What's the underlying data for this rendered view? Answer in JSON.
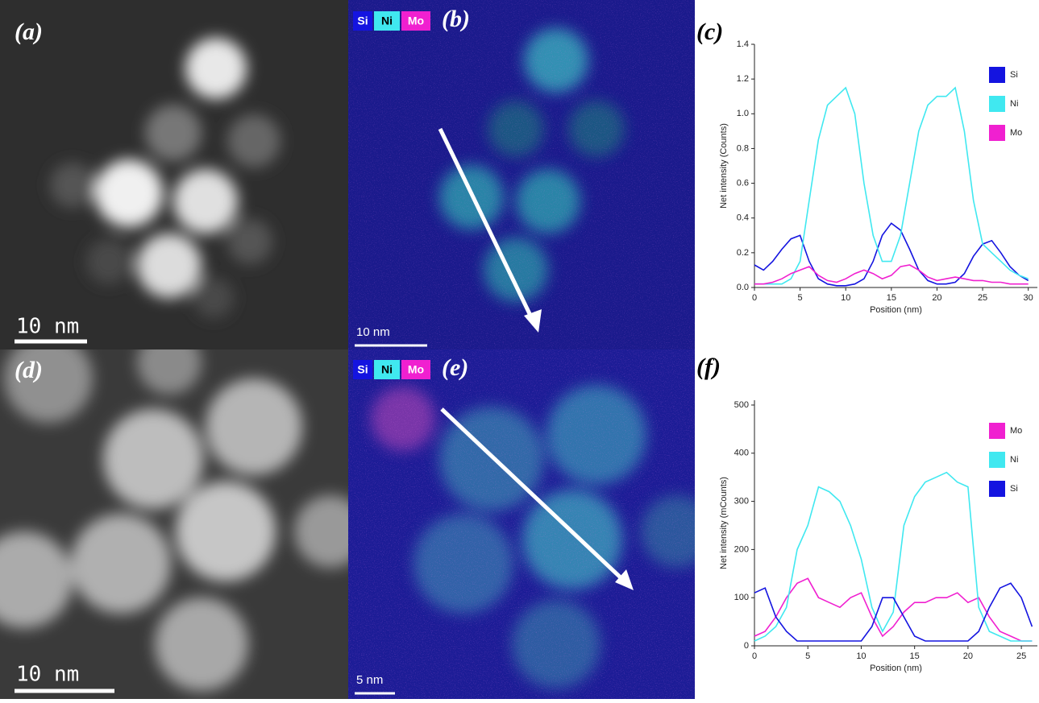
{
  "panels": [
    {
      "label": "(a)",
      "scale_bar": "10 nm"
    },
    {
      "label": "(b)",
      "scale_bar": "10 nm",
      "elements": [
        "Si",
        "Ni",
        "Mo"
      ]
    },
    {
      "label": "(d)",
      "scale_bar": "10 nm"
    },
    {
      "label": "(e)",
      "scale_bar": "5 nm",
      "elements": [
        "Si",
        "Ni",
        "Mo"
      ]
    }
  ],
  "chart_data": [
    {
      "type": "line",
      "title": "(c)",
      "x_label": "Position (nm)",
      "y_label": "Net intensity (Counts)",
      "x": [
        0,
        1,
        2,
        3,
        4,
        5,
        6,
        7,
        8,
        9,
        10,
        11,
        12,
        13,
        14,
        15,
        16,
        17,
        18,
        19,
        20,
        21,
        22,
        23,
        24,
        25,
        26,
        27,
        28,
        29,
        30
      ],
      "series": [
        {
          "name": "Si",
          "color": "#1414e0",
          "values": [
            0.13,
            0.1,
            0.15,
            0.22,
            0.28,
            0.3,
            0.15,
            0.05,
            0.02,
            0.01,
            0.01,
            0.02,
            0.05,
            0.15,
            0.3,
            0.37,
            0.33,
            0.22,
            0.1,
            0.04,
            0.02,
            0.02,
            0.03,
            0.08,
            0.18,
            0.25,
            0.27,
            0.2,
            0.12,
            0.07,
            0.04
          ]
        },
        {
          "name": "Ni",
          "color": "#40e8f0",
          "values": [
            0.02,
            0.02,
            0.02,
            0.02,
            0.05,
            0.15,
            0.5,
            0.85,
            1.05,
            1.1,
            1.15,
            1.0,
            0.6,
            0.3,
            0.15,
            0.15,
            0.3,
            0.6,
            0.9,
            1.05,
            1.1,
            1.1,
            1.15,
            0.9,
            0.5,
            0.25,
            0.2,
            0.15,
            0.1,
            0.07,
            0.05
          ]
        },
        {
          "name": "Mo",
          "color": "#f020d0",
          "values": [
            0.02,
            0.02,
            0.03,
            0.05,
            0.08,
            0.1,
            0.12,
            0.07,
            0.04,
            0.03,
            0.05,
            0.08,
            0.1,
            0.08,
            0.05,
            0.07,
            0.12,
            0.13,
            0.1,
            0.06,
            0.04,
            0.05,
            0.06,
            0.05,
            0.04,
            0.04,
            0.03,
            0.03,
            0.02,
            0.02,
            0.02
          ]
        }
      ],
      "xlim": [
        0,
        31
      ],
      "xticks": [
        0,
        5,
        10,
        15,
        20,
        25,
        30
      ],
      "ylim": [
        0,
        1.4
      ],
      "yticks": [
        {
          "value": 0,
          "label": "0.0"
        },
        0.2,
        0.4,
        0.6,
        0.8,
        {
          "value": 1,
          "label": "1.0"
        },
        1.2,
        1.4
      ],
      "legend": "upper right"
    },
    {
      "type": "line",
      "title": "(f)",
      "x_label": "Position (nm)",
      "y_label": "Net intensity (mCounts)",
      "x": [
        0,
        1,
        2,
        3,
        4,
        5,
        6,
        7,
        8,
        9,
        10,
        11,
        12,
        13,
        14,
        15,
        16,
        17,
        18,
        19,
        20,
        21,
        22,
        23,
        24,
        25,
        26
      ],
      "series": [
        {
          "name": "Mo",
          "color": "#f020d0",
          "values": [
            20,
            30,
            60,
            100,
            130,
            140,
            100,
            90,
            80,
            100,
            110,
            60,
            20,
            40,
            70,
            90,
            90,
            100,
            100,
            110,
            90,
            100,
            60,
            30,
            20,
            10,
            10
          ]
        },
        {
          "name": "Ni",
          "color": "#40e8f0",
          "values": [
            10,
            20,
            40,
            80,
            200,
            250,
            330,
            320,
            300,
            250,
            180,
            80,
            30,
            70,
            250,
            310,
            340,
            350,
            360,
            340,
            330,
            80,
            30,
            20,
            10,
            10,
            10
          ]
        },
        {
          "name": "Si",
          "color": "#1414e0",
          "values": [
            110,
            120,
            60,
            30,
            10,
            10,
            10,
            10,
            10,
            10,
            10,
            40,
            100,
            100,
            60,
            20,
            10,
            10,
            10,
            10,
            10,
            30,
            80,
            120,
            130,
            100,
            40
          ]
        }
      ],
      "xlim": [
        0,
        26.5
      ],
      "xticks": [
        0,
        5,
        10,
        15,
        20,
        25
      ],
      "ylim": [
        0,
        510
      ],
      "yticks": [
        0,
        100,
        200,
        300,
        400,
        500
      ],
      "legend": "upper right"
    }
  ]
}
